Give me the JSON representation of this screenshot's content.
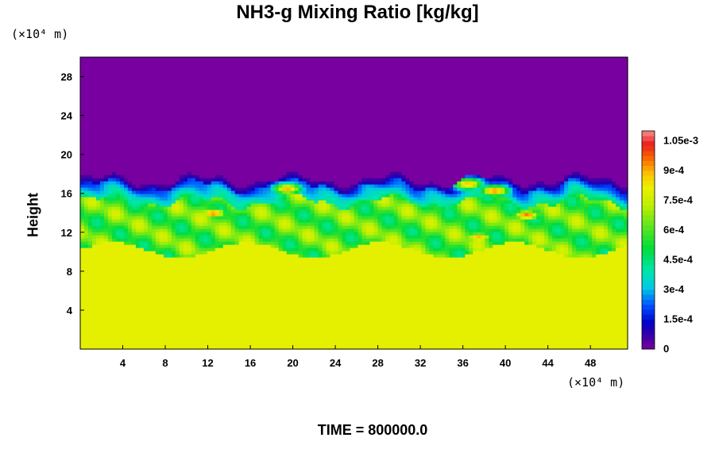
{
  "chart_data": {
    "type": "heatmap",
    "title": "NH3-g Mixing Ratio [kg/kg]",
    "ylabel": "Height",
    "xlabel": "",
    "x_unit": "(×10⁴ m)",
    "y_unit": "(×10⁴ m)",
    "xlim": [
      0,
      51.5
    ],
    "ylim": [
      0,
      30
    ],
    "x_ticks": [
      "4",
      "8",
      "12",
      "16",
      "20",
      "24",
      "28",
      "32",
      "36",
      "40",
      "44",
      "48"
    ],
    "y_ticks": [
      "4",
      "8",
      "12",
      "16",
      "20",
      "24",
      "28"
    ],
    "colorbar": {
      "range": [
        0,
        0.0011
      ],
      "tick_values": [
        0,
        0.00015,
        0.0003,
        0.00045,
        0.0006,
        0.00075,
        0.0009,
        0.00105
      ],
      "tick_labels": [
        "0",
        "1.5e-4",
        "3e-4",
        "4.5e-4",
        "6e-4",
        "7.5e-4",
        "9e-4",
        "1.05e-3"
      ],
      "levels": 44
    },
    "field_description": {
      "upper_layer": {
        "height_range": [
          17.5,
          30
        ],
        "value": 0
      },
      "transition_layer": {
        "height_range": [
          15,
          18
        ],
        "value_range": [
          5e-05,
          0.0004
        ]
      },
      "mixed_layer": {
        "height_range": [
          10.5,
          16
        ],
        "value_range": [
          0.0005,
          0.00075
        ]
      },
      "lower_layer": {
        "height_range": [
          0,
          10.5
        ],
        "value": 0.0008
      },
      "local_maxima": [
        {
          "x": 12.5,
          "y": 14,
          "value": 0.00095
        },
        {
          "x": 19.5,
          "y": 16.5,
          "value": 0.0009
        },
        {
          "x": 36.5,
          "y": 17,
          "value": 0.0009
        },
        {
          "x": 39,
          "y": 16.3,
          "value": 0.00095
        },
        {
          "x": 42,
          "y": 13.8,
          "value": 0.00095
        },
        {
          "x": 37.5,
          "y": 11.5,
          "value": 0.0009
        }
      ]
    }
  },
  "time_label": "TIME = 800000.0"
}
